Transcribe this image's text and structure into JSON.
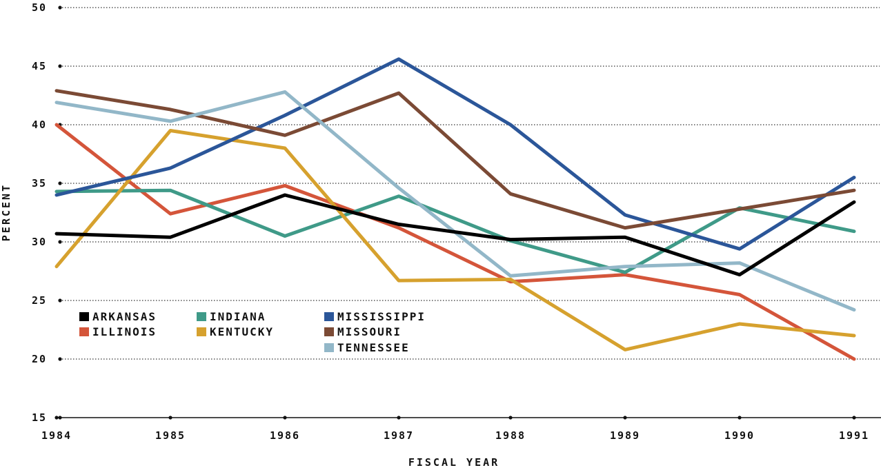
{
  "chart_data": {
    "type": "line",
    "xlabel": "FISCAL YEAR",
    "ylabel": "PERCENT",
    "categories": [
      "1984",
      "1985",
      "1986",
      "1987",
      "1988",
      "1989",
      "1990",
      "1991"
    ],
    "ylim": [
      15,
      50
    ],
    "yticks": [
      15,
      20,
      25,
      30,
      35,
      40,
      45,
      50
    ],
    "grid": "horizontal dotted",
    "legend_position": "lower-left",
    "series": [
      {
        "name": "ARKANSAS",
        "color": "#000000",
        "values": [
          30.7,
          30.4,
          34.0,
          31.5,
          30.2,
          30.4,
          27.2,
          33.4
        ]
      },
      {
        "name": "ILLINOIS",
        "color": "#d4553a",
        "values": [
          40.0,
          32.4,
          34.8,
          31.2,
          26.6,
          27.2,
          25.5,
          20.0
        ]
      },
      {
        "name": "INDIANA",
        "color": "#3f9a88",
        "values": [
          34.3,
          34.4,
          30.5,
          33.9,
          30.1,
          27.4,
          32.9,
          30.9
        ]
      },
      {
        "name": "KENTUCKY",
        "color": "#d6a12e",
        "values": [
          27.9,
          39.5,
          38.0,
          26.7,
          26.8,
          20.8,
          23.0,
          22.0
        ]
      },
      {
        "name": "MISSISSIPPI",
        "color": "#2b5699",
        "values": [
          34.0,
          36.3,
          40.8,
          45.6,
          40.0,
          32.3,
          29.4,
          35.5
        ]
      },
      {
        "name": "MISSOURI",
        "color": "#7b4a35",
        "values": [
          42.9,
          41.3,
          39.1,
          42.7,
          34.1,
          31.2,
          32.8,
          34.4
        ]
      },
      {
        "name": "TENNESSEE",
        "color": "#92b7c8",
        "values": [
          41.9,
          40.3,
          42.8,
          34.6,
          27.1,
          27.9,
          28.2,
          24.2
        ]
      }
    ]
  }
}
